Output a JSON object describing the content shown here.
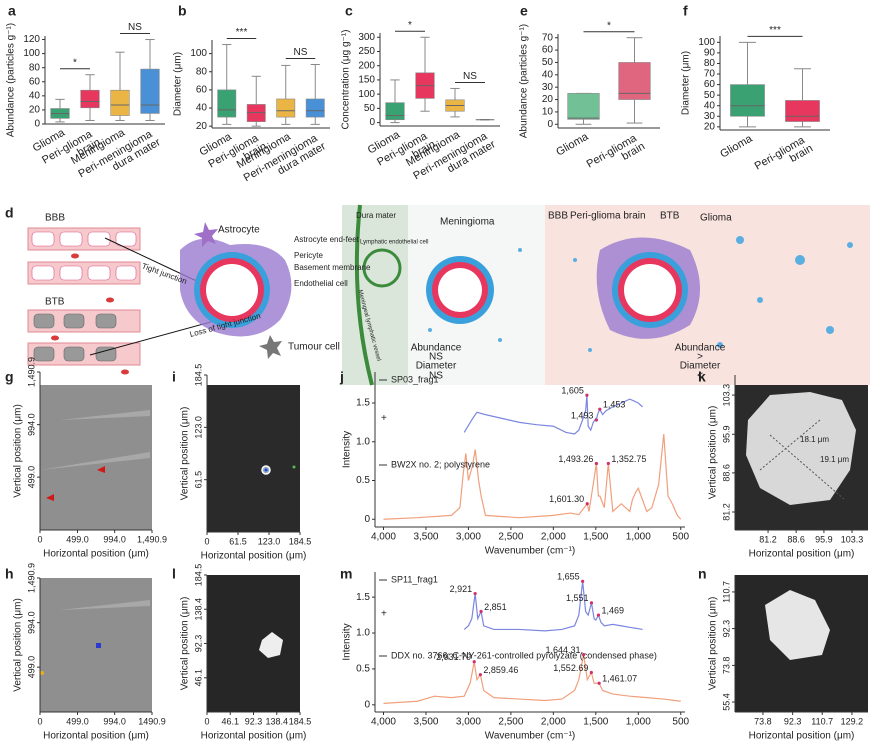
{
  "chart_data": [
    {
      "type": "box",
      "panel": "a",
      "ylabel": "Abundance (particles g⁻¹)",
      "categories": [
        "Glioma",
        "Peri-glioma brain",
        "Meningioma",
        "Peri-meningioma dura mater"
      ],
      "colors": [
        "#3aa172",
        "#e8375f",
        "#ebb545",
        "#4a90d6"
      ],
      "boxes": [
        {
          "min": 3,
          "q1": 8,
          "median": 15,
          "q3": 22,
          "max": 35
        },
        {
          "min": 5,
          "q1": 23,
          "median": 32,
          "q3": 48,
          "max": 70
        },
        {
          "min": 5,
          "q1": 12,
          "median": 27,
          "q3": 48,
          "max": 102
        },
        {
          "min": 5,
          "q1": 15,
          "median": 27,
          "q3": 78,
          "max": 120
        }
      ],
      "ylim": [
        0,
        125
      ],
      "yticks": [
        0,
        20,
        40,
        60,
        80,
        100,
        120
      ],
      "annotations": [
        {
          "text": "*",
          "pair": [
            0,
            1
          ]
        },
        {
          "text": "NS",
          "pair": [
            2,
            3
          ]
        }
      ]
    },
    {
      "type": "box",
      "panel": "b",
      "ylabel": "Diameter (μm)",
      "categories": [
        "Glioma",
        "Peri-glioma brain",
        "Meningioma",
        "Peri-meningioma dura mater"
      ],
      "colors": [
        "#3aa172",
        "#e8375f",
        "#ebb545",
        "#4a90d6"
      ],
      "boxes": [
        {
          "min": 22,
          "q1": 30,
          "median": 38,
          "q3": 60,
          "max": 110
        },
        {
          "min": 20,
          "q1": 25,
          "median": 35,
          "q3": 44,
          "max": 75
        },
        {
          "min": 22,
          "q1": 30,
          "median": 37,
          "q3": 50,
          "max": 87
        },
        {
          "min": 22,
          "q1": 30,
          "median": 37,
          "q3": 50,
          "max": 88
        }
      ],
      "ylim": [
        18,
        115
      ],
      "yticks": [
        20,
        40,
        60,
        80,
        100
      ],
      "annotations": [
        {
          "text": "***",
          "pair": [
            0,
            1
          ]
        },
        {
          "text": "NS",
          "pair": [
            2,
            3
          ]
        }
      ]
    },
    {
      "type": "box",
      "panel": "c",
      "ylabel": "Concentration (μg g⁻¹)",
      "categories": [
        "Glioma",
        "Peri-glioma brain",
        "Meningioma",
        "Peri-meningioma dura mater"
      ],
      "colors": [
        "#3aa172",
        "#e8375f",
        "#ebb545",
        "#4a90d6"
      ],
      "boxes": [
        {
          "min": 0,
          "q1": 10,
          "median": 25,
          "q3": 70,
          "max": 150
        },
        {
          "min": 40,
          "q1": 85,
          "median": 130,
          "q3": 175,
          "max": 300
        },
        {
          "min": 20,
          "q1": 40,
          "median": 60,
          "q3": 80,
          "max": 120
        },
        {
          "min": 10,
          "q1": 10,
          "median": 10,
          "q3": 10,
          "max": 10
        }
      ],
      "ylim": [
        -12,
        315
      ],
      "yticks": [
        0,
        50,
        100,
        150,
        200,
        250,
        300
      ],
      "annotations": [
        {
          "text": "*",
          "pair": [
            0,
            1
          ]
        },
        {
          "text": "NS",
          "pair": [
            2,
            3
          ]
        }
      ]
    },
    {
      "type": "box",
      "panel": "e",
      "ylabel": "Abundance (particles g⁻¹)",
      "categories": [
        "Glioma",
        "Peri-glioma brain"
      ],
      "colors": [
        "#72c196",
        "#e0657f"
      ],
      "boxes": [
        {
          "min": 0,
          "q1": 4,
          "median": 5,
          "q3": 25,
          "max": 25
        },
        {
          "min": 1,
          "q1": 20,
          "median": 25,
          "q3": 50,
          "max": 70
        }
      ],
      "ylim": [
        -3,
        73
      ],
      "yticks": [
        0,
        10,
        20,
        30,
        40,
        50,
        60,
        70
      ],
      "annotations": [
        {
          "text": "*",
          "pair": [
            0,
            1
          ]
        }
      ]
    },
    {
      "type": "box",
      "panel": "f",
      "ylabel": "Diameter (μm)",
      "categories": [
        "Glioma",
        "Peri-glioma brain"
      ],
      "colors": [
        "#3aa172",
        "#e8375f"
      ],
      "boxes": [
        {
          "min": 20,
          "q1": 30,
          "median": 40,
          "q3": 60,
          "max": 100
        },
        {
          "min": 20,
          "q1": 25,
          "median": 30,
          "q3": 45,
          "max": 75
        }
      ],
      "ylim": [
        17,
        106
      ],
      "yticks": [
        20,
        30,
        40,
        50,
        60,
        70,
        80,
        90,
        100
      ],
      "annotations": [
        {
          "text": "***",
          "pair": [
            0,
            1
          ]
        }
      ]
    },
    {
      "type": "image",
      "panel": "g",
      "background": "#8f8f8f",
      "xlabel": "Horizontal position (μm)",
      "ylabel": "Vertical position (μm)",
      "xlim": [
        0,
        1490.9
      ],
      "ylim": [
        0,
        1490.9
      ],
      "xticks": [
        0,
        {
          "value": 499,
          "label": "499.0"
        },
        {
          "value": 994,
          "label": "994.0"
        },
        {
          "value": 1490.9,
          "label": "1,490.9"
        }
      ],
      "yticks": [
        {
          "value": 499,
          "label": "499.0"
        },
        {
          "value": 994,
          "label": "994.0"
        },
        {
          "value": 1490.9,
          "label": "1,490.9"
        }
      ]
    },
    {
      "type": "image",
      "panel": "h",
      "background": "#8f8f8f",
      "xlabel": "Horizontal position (μm)",
      "ylabel": "Vertical position (μm)",
      "xlim": [
        0,
        1490.9
      ],
      "ylim": [
        0,
        1490.9
      ],
      "xticks": [
        0,
        {
          "value": 499,
          "label": "499.0"
        },
        {
          "value": 994,
          "label": "994.0"
        },
        {
          "value": 1490.9,
          "label": "1490.9"
        }
      ],
      "yticks": [
        {
          "value": 499,
          "label": "499.0"
        },
        {
          "value": 994,
          "label": "994.0"
        },
        {
          "value": 1490.9,
          "label": "1,490.9"
        }
      ]
    },
    {
      "type": "image",
      "panel": "i",
      "background": "#2a2a2a",
      "xlabel": "Horizontal position (μm)",
      "ylabel": "Vertical position (μm)",
      "xlim": [
        0,
        184.5
      ],
      "ylim": [
        0,
        184.5
      ],
      "xticks": [
        0,
        61.5,
        {
          "value": 123,
          "label": "123.0"
        },
        184.5
      ],
      "yticks": [
        61.5,
        {
          "value": 123,
          "label": "123.0"
        },
        184.5
      ]
    },
    {
      "type": "line",
      "panel": "j",
      "xlabel": "Wavenumber (cm⁻¹)",
      "ylabel": "Intensity",
      "marker_text": "+",
      "xlim": [
        4100,
        450
      ],
      "ylim": [
        -0.1,
        1.9
      ],
      "xticks": [
        {
          "value": 4000,
          "label": "4,000"
        },
        {
          "value": 3500,
          "label": "3,500"
        },
        {
          "value": 3000,
          "label": "3,000"
        },
        {
          "value": 2500,
          "label": "2,500"
        },
        {
          "value": 2000,
          "label": "2,000"
        },
        {
          "value": 1500,
          "label": "1,500"
        },
        {
          "value": 1000,
          "label": "1,000"
        },
        500
      ],
      "yticks": [
        0,
        0.5,
        {
          "value": 1,
          "label": "1.0"
        },
        1.5
      ],
      "series": [
        {
          "name": "SP03_frag1",
          "color": "#7b86e0",
          "x": [
            3050,
            2950,
            2900,
            2800,
            2600,
            2400,
            2200,
            2000,
            1850,
            1750,
            1700,
            1650,
            1620,
            1605,
            1590,
            1560,
            1530,
            1500,
            1493,
            1480,
            1453,
            1420,
            1380,
            1300,
            1200,
            1100,
            1000,
            950
          ],
          "values": [
            1.12,
            1.3,
            1.38,
            1.35,
            1.3,
            1.25,
            1.22,
            1.2,
            1.12,
            1.1,
            1.15,
            1.3,
            1.4,
            1.6,
            1.2,
            1.15,
            1.25,
            1.3,
            1.28,
            1.35,
            1.42,
            1.35,
            1.4,
            1.45,
            1.5,
            1.55,
            1.5,
            1.45
          ],
          "peaks": [
            {
              "x": 1605,
              "y": 1.6,
              "label": "1,605"
            },
            {
              "x": 1453,
              "y": 1.42,
              "label": "1,453"
            },
            {
              "x": 1493,
              "y": 1.28,
              "label": "1,493"
            }
          ]
        },
        {
          "name": "BW2X no. 2; polystyrene",
          "color": "#f0a07c",
          "x": [
            4000,
            3600,
            3200,
            3100,
            3060,
            3030,
            3000,
            2950,
            2920,
            2880,
            2850,
            2800,
            2400,
            2000,
            1800,
            1700,
            1601.3,
            1580,
            1493.26,
            1470,
            1452,
            1400,
            1352.75,
            1300,
            1200,
            1100,
            1070,
            1030,
            1000,
            900,
            840,
            760,
            700,
            650,
            600,
            540,
            500
          ],
          "values": [
            0,
            0.02,
            0.05,
            0.15,
            0.6,
            0.85,
            0.5,
            0.7,
            0.9,
            0.5,
            0.3,
            0.05,
            0.02,
            0.05,
            0.08,
            0.06,
            0.2,
            0.1,
            0.72,
            0.3,
            0.3,
            0.15,
            0.72,
            0.1,
            0.2,
            0.1,
            0.25,
            0.35,
            0.4,
            0.1,
            0.15,
            0.45,
            1.1,
            0.3,
            0.2,
            0.05,
            0
          ],
          "peaks": [
            {
              "x": 1493.26,
              "y": 0.72,
              "label": "1,493.26"
            },
            {
              "x": 1352.75,
              "y": 0.72,
              "label": "1,352.75"
            },
            {
              "x": 1601.3,
              "y": 0.2,
              "label": "1,601.30"
            }
          ]
        }
      ]
    },
    {
      "type": "image",
      "panel": "k",
      "background": "#2b2b2b",
      "xlabel": "Horizontal position (μm)",
      "ylabel": "Vertical position (μm)",
      "xlim": [
        72.5,
        107.5
      ],
      "ylim": [
        77.8,
        107.1
      ],
      "xticks": [
        81.2,
        88.6,
        95.9,
        103.3
      ],
      "yticks": [
        81.2,
        88.6,
        95.9,
        103.3
      ],
      "annotations": [
        "18.1 μm",
        "19.1 μm"
      ]
    },
    {
      "type": "image",
      "panel": "l",
      "background": "#262626",
      "xlabel": "Horizontal position (μm)",
      "ylabel": "Vertical position (μm)",
      "xlim": [
        0,
        184.5
      ],
      "ylim": [
        0,
        184.5
      ],
      "xticks": [
        0,
        46.1,
        92.3,
        138.4,
        184.5
      ],
      "yticks": [
        46.1,
        92.3,
        138.4,
        184.5
      ]
    },
    {
      "type": "line",
      "panel": "m",
      "xlabel": "Wavenumber (cm⁻¹)",
      "ylabel": "Intensity",
      "marker_text": "+",
      "xlim": [
        4100,
        450
      ],
      "ylim": [
        -0.1,
        1.85
      ],
      "xticks": [
        {
          "value": 4000,
          "label": "4,000"
        },
        {
          "value": 3500,
          "label": "3,500"
        },
        {
          "value": 3000,
          "label": "3,000"
        },
        {
          "value": 2500,
          "label": "2,500"
        },
        {
          "value": 2000,
          "label": "2,000"
        },
        {
          "value": 1500,
          "label": "1,500"
        },
        {
          "value": 1000,
          "label": "1,000"
        },
        500
      ],
      "yticks": [
        0,
        0.5,
        {
          "value": 1,
          "label": "1.0"
        },
        1.5
      ],
      "series": [
        {
          "name": "SP11_frag1",
          "color": "#7b86e0",
          "x": [
            3050,
            3000,
            2960,
            2921,
            2890,
            2851,
            2820,
            2700,
            2400,
            2100,
            1900,
            1750,
            1700,
            1655,
            1620,
            1590,
            1551,
            1520,
            1500,
            1469,
            1440,
            1400,
            1300,
            1200,
            1100,
            1000,
            950
          ],
          "values": [
            1.05,
            1.1,
            1.2,
            1.55,
            1.2,
            1.3,
            1.1,
            1.05,
            1.05,
            1.03,
            1.05,
            1.1,
            1.25,
            1.72,
            1.3,
            1.25,
            1.42,
            1.2,
            1.18,
            1.25,
            1.15,
            1.1,
            1.12,
            1.1,
            1.08,
            1.06,
            1.05
          ],
          "peaks": [
            {
              "x": 2921,
              "y": 1.55,
              "label": "2,921"
            },
            {
              "x": 2851,
              "y": 1.3,
              "label": "2,851"
            },
            {
              "x": 1655,
              "y": 1.72,
              "label": "1,655"
            },
            {
              "x": 1551,
              "y": 1.42,
              "label": "1,551"
            },
            {
              "x": 1469,
              "y": 1.25,
              "label": "1,469"
            }
          ]
        },
        {
          "name": "DDX no. 3766; C-NY-261-controlled pyrolyzate (condensed phase)",
          "color": "#f0a07c",
          "x": [
            4000,
            3600,
            3400,
            3200,
            3050,
            2980,
            2931.79,
            2900,
            2859.46,
            2820,
            2700,
            2400,
            2100,
            1900,
            1750,
            1700,
            1644.31,
            1600,
            1552.69,
            1520,
            1461.07,
            1420,
            1300,
            1100,
            900,
            700,
            500
          ],
          "values": [
            0.02,
            0.05,
            0.12,
            0.1,
            0.12,
            0.3,
            0.6,
            0.35,
            0.42,
            0.2,
            0.1,
            0.08,
            0.06,
            0.08,
            0.2,
            0.35,
            0.7,
            0.35,
            0.45,
            0.3,
            0.3,
            0.2,
            0.15,
            0.12,
            0.1,
            0.08,
            0.05
          ],
          "peaks": [
            {
              "x": 2931.79,
              "y": 0.6,
              "label": "2,931.79"
            },
            {
              "x": 2859.46,
              "y": 0.42,
              "label": "2,859.46"
            },
            {
              "x": 1644.31,
              "y": 0.7,
              "label": "1,644.31"
            },
            {
              "x": 1552.69,
              "y": 0.45,
              "label": "1,552.69"
            },
            {
              "x": 1461.07,
              "y": 0.3,
              "label": "1,461.07"
            }
          ]
        }
      ]
    },
    {
      "type": "image",
      "panel": "n",
      "background": "#272727",
      "xlabel": "Horizontal position (μm)",
      "ylabel": "Vertical position (μm)",
      "xlim": [
        56.4,
        139.2
      ],
      "ylim": [
        50.4,
        119.2
      ],
      "xticks": [
        73.8,
        92.3,
        110.7,
        129.2
      ],
      "yticks": [
        55.4,
        73.8,
        92.3,
        110.7
      ]
    }
  ],
  "schematic": {
    "panel": "d",
    "bbb": "BBB",
    "btb": "BTB",
    "tight_junction": "Tight junction",
    "loss": "Loss of tight junction",
    "astrocyte": "Astrocyte",
    "end_feet": "Astrocyte end-feet",
    "pericyte": "Pericyte",
    "basement": "Basement membrane",
    "endothelial": "Endothelial cell",
    "tumour": "Tumour cell",
    "dura": "Dura mater",
    "lymph_cell": "Lymphatic endothelial cell",
    "lymph_vessel": "Meningeal lymphatic vessel",
    "meningioma": "Meningioma",
    "mid_abundance": "Abundance",
    "mid_abundance_result": "NS",
    "mid_diameter": "Diameter",
    "mid_diameter_result": "NS",
    "right_bbb": "BBB",
    "right_peri": "Peri-glioma brain",
    "right_btb": "BTB",
    "right_glioma": "Glioma",
    "right_abundance": "Abundance",
    "right_abundance_result": ">",
    "right_diameter": "Diameter",
    "right_diameter_result": "<"
  }
}
